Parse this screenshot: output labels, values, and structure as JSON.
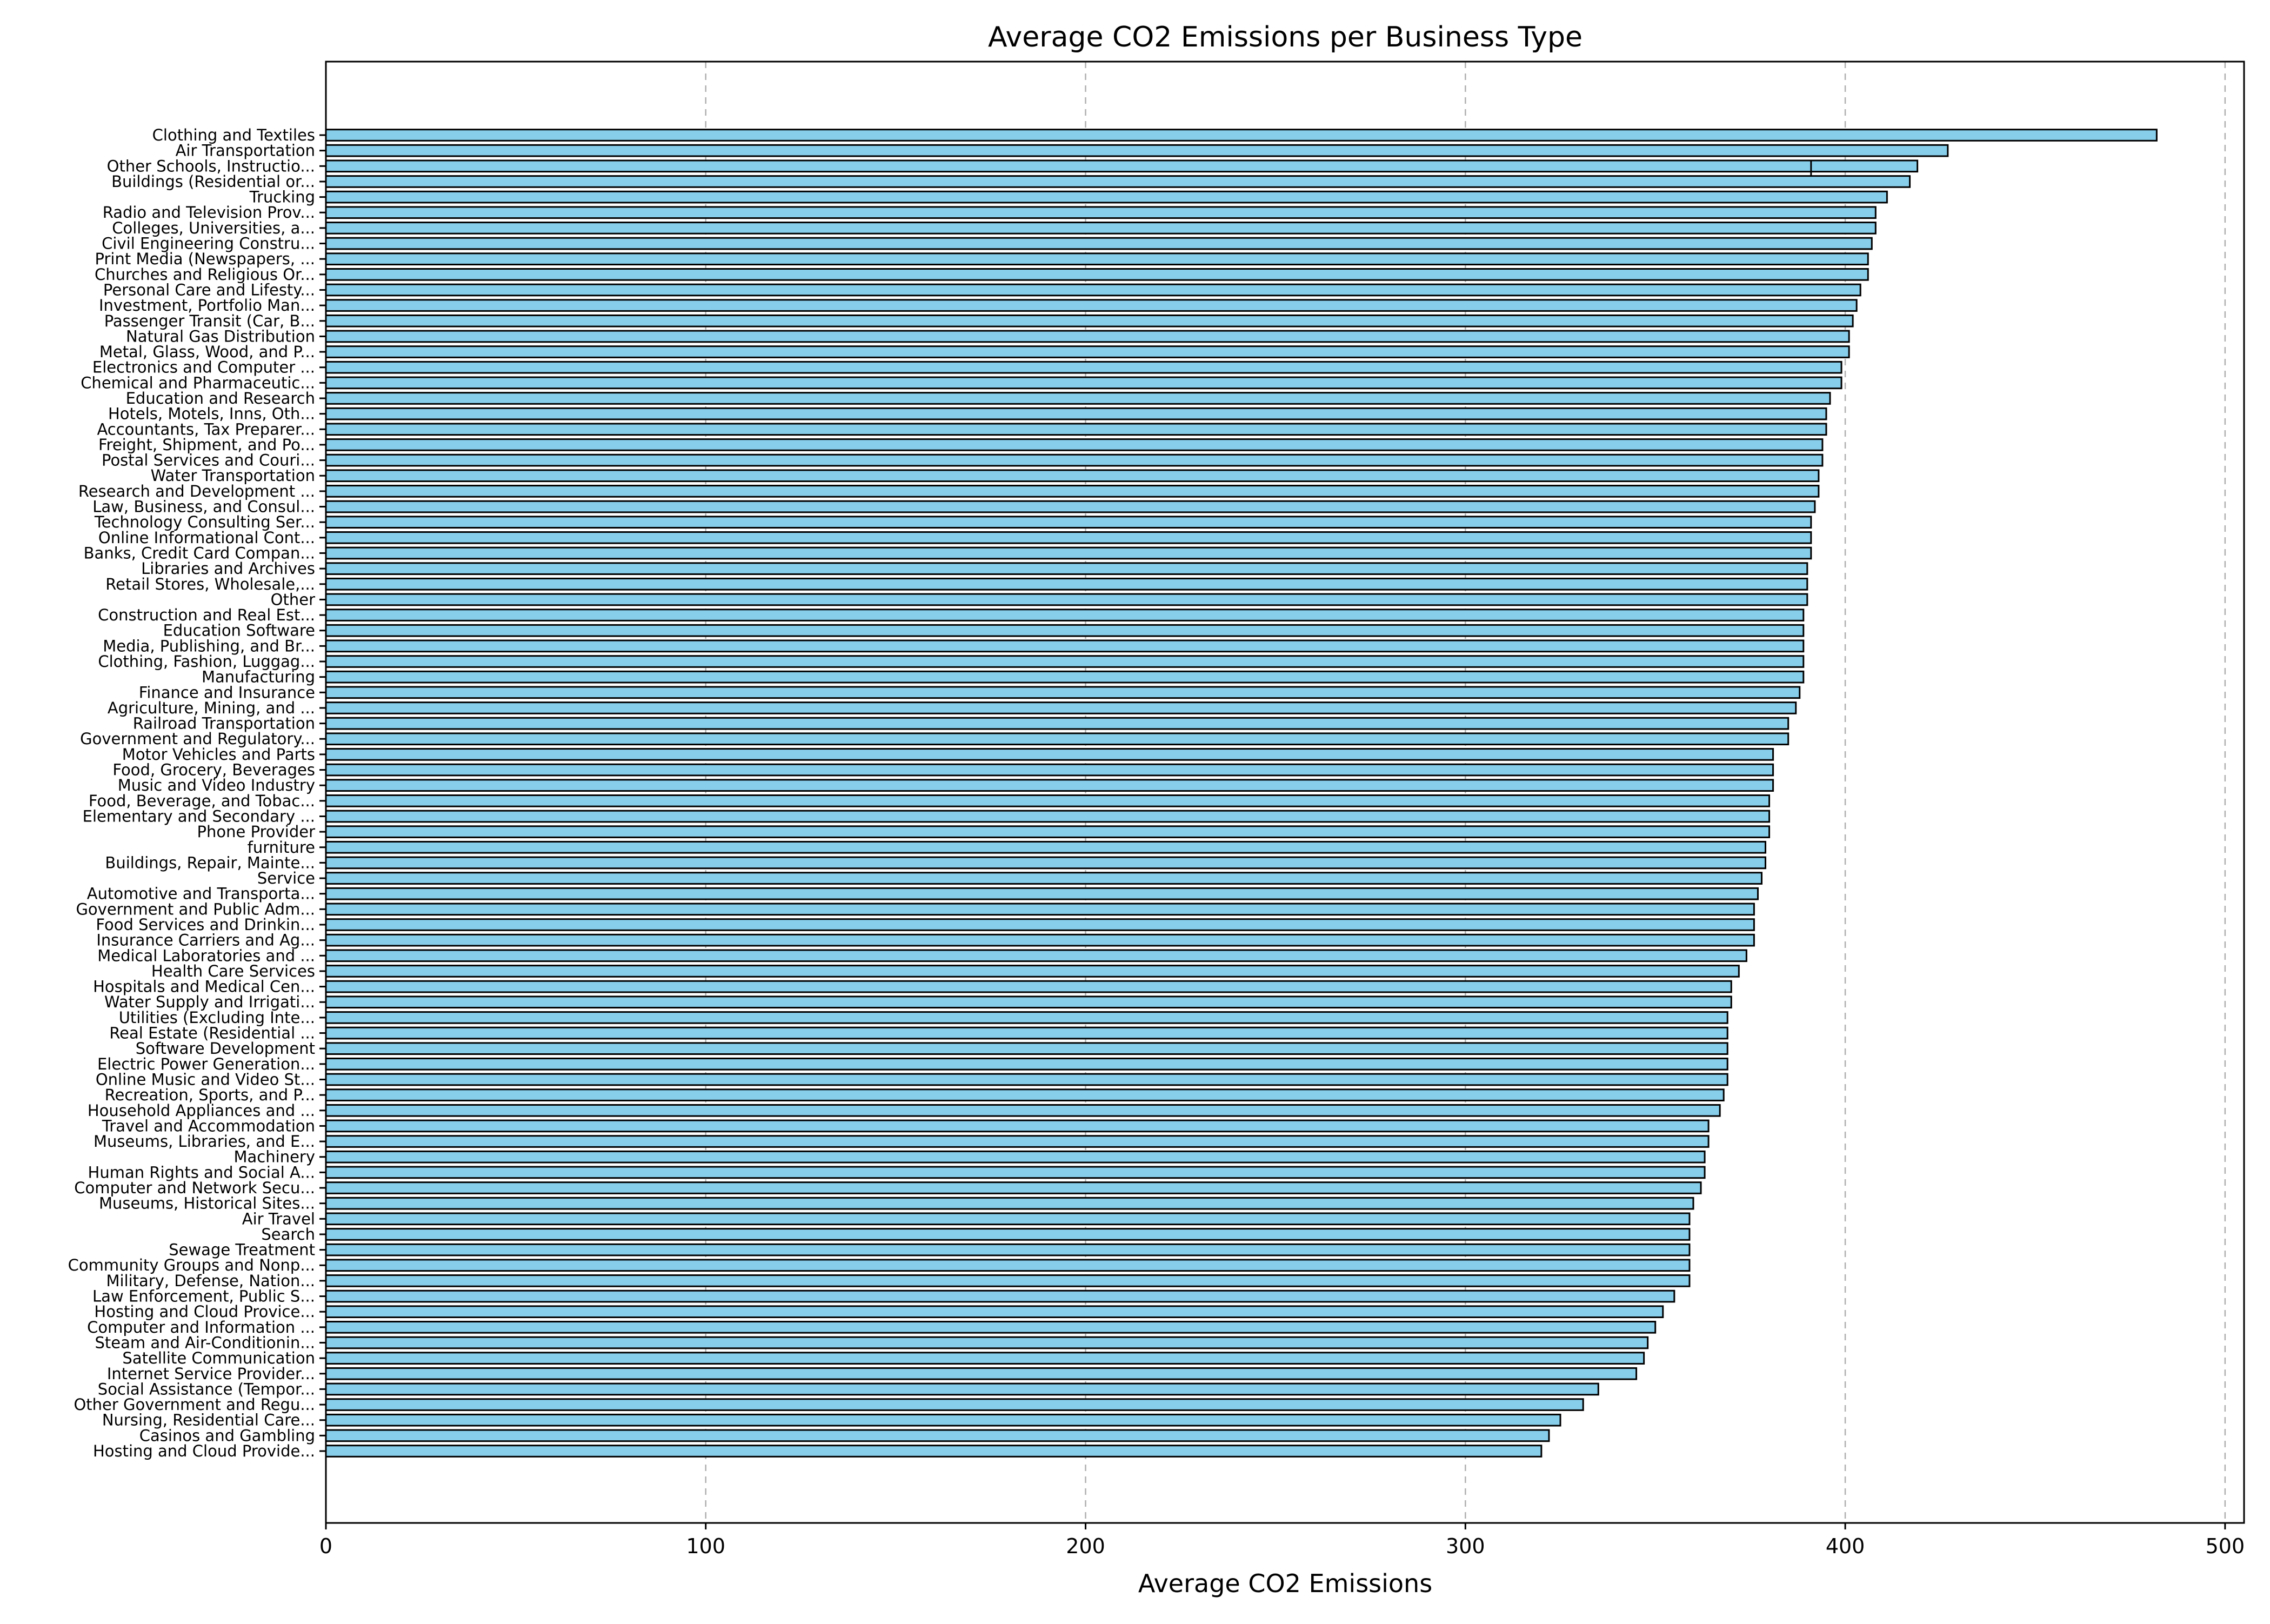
{
  "chart_data": {
    "type": "bar",
    "orientation": "horizontal",
    "title": "Average CO2 Emissions per Business Type",
    "xlabel": "Average CO2 Emissions",
    "ylabel": "",
    "xlim": [
      0,
      505
    ],
    "xticks": [
      0,
      100,
      200,
      300,
      400,
      500
    ],
    "grid": "x-axis dashed",
    "bar_color": "#87ceeb",
    "edge_color": "#000000",
    "categories": [
      "Clothing and Textiles",
      "Air Transportation",
      "Other Schools, Instructio...",
      "Buildings (Residential or...",
      "Trucking",
      "Radio and Television Prov...",
      "Colleges, Universities, a...",
      "Civil Engineering Constru...",
      "Print Media (Newspapers, ...",
      "Churches and Religious Or...",
      "Personal Care and Lifesty...",
      "Investment, Portfolio Man...",
      "Passenger Transit (Car, B...",
      "Natural Gas Distribution",
      "Metal, Glass, Wood, and P...",
      "Electronics and Computer ...",
      "Chemical and Pharmaceutic...",
      "Education and Research",
      "Hotels, Motels, Inns, Oth...",
      "Accountants, Tax Preparer...",
      "Freight, Shipment, and Po...",
      "Postal Services and Couri...",
      "Water Transportation",
      "Research and Development ...",
      "Law, Business, and Consul...",
      "Technology Consulting Ser...",
      "Online Informational Cont...",
      "Banks, Credit Card Compan...",
      "Libraries and Archives",
      "Retail Stores, Wholesale,...",
      "Other",
      "Construction and Real Est...",
      "Education Software",
      "Media, Publishing, and Br...",
      "Clothing, Fashion, Luggag...",
      "Manufacturing",
      "Finance and Insurance",
      "Agriculture, Mining, and ...",
      "Railroad Transportation",
      "Government and Regulatory...",
      "Motor Vehicles and Parts",
      "Food, Grocery, Beverages",
      "Music and Video Industry",
      "Food, Beverage, and Tobac...",
      "Elementary and Secondary ...",
      "Phone Provider",
      "furniture",
      "Buildings, Repair, Mainte...",
      "Service",
      "Automotive and Transporta...",
      "Government and Public Adm...",
      "Food Services and Drinkin...",
      "Insurance Carriers and Ag...",
      "Medical Laboratories and ...",
      "Health Care Services",
      "Hospitals and Medical Cen...",
      "Water Supply and Irrigati...",
      "Utilities (Excluding Inte...",
      "Real Estate (Residential ...",
      "Software Development",
      "Electric Power Generation...",
      "Online Music and Video St...",
      "Recreation, Sports, and P...",
      "Household Appliances and ...",
      "Travel and Accommodation",
      "Museums, Libraries, and E...",
      "Machinery",
      "Human Rights and Social A...",
      "Computer and Network Secu...",
      "Museums, Historical Sites...",
      "Air Travel",
      "Search",
      "Sewage Treatment",
      "Community Groups and Nonp...",
      "Military, Defense, Nation...",
      "Law Enforcement, Public S...",
      "Hosting and Cloud Provice...",
      "Computer and Information ...",
      "Steam and Air-Conditionin...",
      "Satellite Communication",
      "Internet Service Provider...",
      "Social Assistance (Tempor...",
      "Other Government and Regu...",
      "Nursing, Residential Care...",
      "Casinos and Gambling",
      "Hosting and Cloud Provide..."
    ],
    "values": [
      482,
      427,
      419,
      417,
      411,
      408,
      408,
      407,
      406,
      406,
      404,
      403,
      402,
      401,
      401,
      399,
      399,
      396,
      395,
      395,
      394,
      394,
      393,
      393,
      392,
      391,
      391,
      391,
      390,
      390,
      390,
      389,
      389,
      389,
      389,
      389,
      388,
      387,
      385,
      385,
      381,
      381,
      381,
      380,
      380,
      380,
      379,
      379,
      378,
      377,
      376,
      376,
      376,
      374,
      372,
      370,
      370,
      369,
      369,
      369,
      369,
      369,
      368,
      367,
      364,
      364,
      363,
      363,
      362,
      360,
      359,
      359,
      359,
      359,
      359,
      355,
      352,
      350,
      348,
      347,
      345,
      335,
      331,
      325,
      322,
      320
    ],
    "extra_marks": [
      {
        "note": "small vertical segment",
        "row_index": 2,
        "x": 391
      }
    ]
  }
}
